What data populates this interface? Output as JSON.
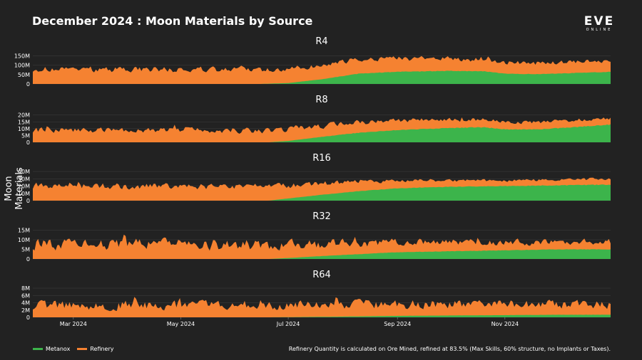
{
  "title": "December 2024 : Moon Materials by Source",
  "logo": {
    "main": "EVE",
    "sub": "ONLINE"
  },
  "ylabel": "Moon Materials",
  "colors": {
    "metanox": "#3cb44b",
    "refinery": "#f58231",
    "background": "#222222",
    "text": "#ffffff"
  },
  "legend": [
    {
      "label": "Metanox",
      "color": "#3cb44b"
    },
    {
      "label": "Refinery",
      "color": "#f58231"
    }
  ],
  "note": "Refinery Quantity is calculated on Ore Mined, refined at 83.5% (Max Skills, 60% structure, no Implants or Taxes).",
  "chart_data": {
    "type": "area",
    "stacked": true,
    "x_domain": [
      "2024-02-07",
      "2024-12-31"
    ],
    "x_ticks": [
      {
        "label": "Mar 2024",
        "date": "2024-03-01"
      },
      {
        "label": "May 2024",
        "date": "2024-05-01"
      },
      {
        "label": "Jul 2024",
        "date": "2024-07-01"
      },
      {
        "label": "Sep 2024",
        "date": "2024-09-01"
      },
      {
        "label": "Nov 2024",
        "date": "2024-11-01"
      }
    ],
    "panels": [
      {
        "title": "R4",
        "ymax": 175,
        "yticks": [
          0,
          50,
          100,
          150
        ],
        "ytick_labels": [
          "0",
          "50M",
          "100M",
          "150M"
        ],
        "series": [
          {
            "name": "Metanox",
            "x": [
              "2024-06-15",
              "2024-07-01",
              "2024-07-20",
              "2024-08-10",
              "2024-09-01",
              "2024-10-01",
              "2024-10-20",
              "2024-11-01",
              "2024-11-20",
              "2024-12-15",
              "2024-12-31"
            ],
            "values": [
              0,
              5,
              25,
              55,
              65,
              70,
              68,
              55,
              52,
              60,
              65
            ]
          },
          {
            "name": "Refinery",
            "x": [
              "2024-02-07",
              "2024-04-01",
              "2024-06-01",
              "2024-07-01",
              "2024-08-01",
              "2024-09-01",
              "2024-10-01",
              "2024-11-01",
              "2024-12-01",
              "2024-12-31"
            ],
            "values": [
              80,
              78,
              75,
              72,
              75,
              72,
              65,
              60,
              58,
              60
            ]
          }
        ]
      },
      {
        "title": "R8",
        "ymax": 24,
        "yticks": [
          0,
          5,
          10,
          15,
          20
        ],
        "ytick_labels": [
          "0",
          "5M",
          "10M",
          "15M",
          "20M"
        ],
        "series": [
          {
            "name": "Metanox",
            "x": [
              "2024-06-20",
              "2024-07-01",
              "2024-07-20",
              "2024-08-10",
              "2024-09-01",
              "2024-10-01",
              "2024-10-20",
              "2024-11-01",
              "2024-11-20",
              "2024-12-15",
              "2024-12-31"
            ],
            "values": [
              0,
              1,
              4,
              7,
              9,
              10.5,
              11,
              9.5,
              9.5,
              11.5,
              13
            ]
          },
          {
            "name": "Refinery",
            "x": [
              "2024-02-07",
              "2024-04-01",
              "2024-06-01",
              "2024-07-01",
              "2024-08-01",
              "2024-09-01",
              "2024-10-01",
              "2024-11-01",
              "2024-12-01",
              "2024-12-31"
            ],
            "values": [
              9,
              8.8,
              8.6,
              8.5,
              8,
              7,
              6,
              5.5,
              5,
              5
            ]
          }
        ]
      },
      {
        "title": "R16",
        "ymax": 45,
        "yticks": [
          0,
          10,
          20,
          30,
          40
        ],
        "ytick_labels": [
          "0",
          "10M",
          "20M",
          "30M",
          "40M"
        ],
        "series": [
          {
            "name": "Metanox",
            "x": [
              "2024-06-20",
              "2024-07-01",
              "2024-07-20",
              "2024-08-10",
              "2024-09-01",
              "2024-10-01",
              "2024-11-01",
              "2024-12-01",
              "2024-12-31"
            ],
            "values": [
              0,
              3,
              8,
              13,
              17,
              19,
              20,
              21,
              22
            ]
          },
          {
            "name": "Refinery",
            "x": [
              "2024-02-07",
              "2024-04-01",
              "2024-06-01",
              "2024-07-01",
              "2024-08-01",
              "2024-09-01",
              "2024-10-01",
              "2024-11-01",
              "2024-12-01",
              "2024-12-31"
            ],
            "values": [
              20,
              20,
              19,
              18,
              14,
              10,
              9,
              8,
              8,
              8
            ]
          }
        ]
      },
      {
        "title": "R32",
        "ymax": 17,
        "yticks": [
          0,
          5,
          10,
          15
        ],
        "ytick_labels": [
          "0",
          "5M",
          "10M",
          "15M"
        ],
        "series": [
          {
            "name": "Metanox",
            "x": [
              "2024-06-20",
              "2024-07-01",
              "2024-07-20",
              "2024-08-10",
              "2024-09-01",
              "2024-10-01",
              "2024-11-01",
              "2024-12-01",
              "2024-12-31"
            ],
            "values": [
              0,
              0.5,
              1.5,
              2.5,
              3.5,
              4,
              4.5,
              5,
              5
            ]
          },
          {
            "name": "Refinery",
            "x": [
              "2024-02-07",
              "2024-04-01",
              "2024-06-01",
              "2024-07-01",
              "2024-08-01",
              "2024-09-01",
              "2024-10-01",
              "2024-11-01",
              "2024-12-01",
              "2024-12-31"
            ],
            "values": [
              7.5,
              7.5,
              7.5,
              7,
              6,
              5,
              4.5,
              4,
              4,
              4
            ]
          }
        ]
      },
      {
        "title": "R64",
        "ymax": 9,
        "yticks": [
          0,
          2,
          4,
          6,
          8
        ],
        "ytick_labels": [
          "0",
          "2M",
          "4M",
          "6M",
          "8M"
        ],
        "series": [
          {
            "name": "Metanox",
            "x": [
              "2024-06-20",
              "2024-08-01",
              "2024-09-01",
              "2024-10-01",
              "2024-11-01",
              "2024-12-01",
              "2024-12-31"
            ],
            "values": [
              0,
              0.2,
              0.4,
              0.5,
              0.6,
              0.7,
              0.7
            ]
          },
          {
            "name": "Refinery",
            "x": [
              "2024-02-07",
              "2024-04-01",
              "2024-06-01",
              "2024-07-01",
              "2024-08-01",
              "2024-09-01",
              "2024-10-01",
              "2024-11-01",
              "2024-12-01",
              "2024-12-31"
            ],
            "values": [
              3.2,
              3.4,
              3.4,
              3.3,
              3.2,
              3.2,
              3.1,
              3,
              2.8,
              2.8
            ]
          }
        ]
      }
    ]
  }
}
